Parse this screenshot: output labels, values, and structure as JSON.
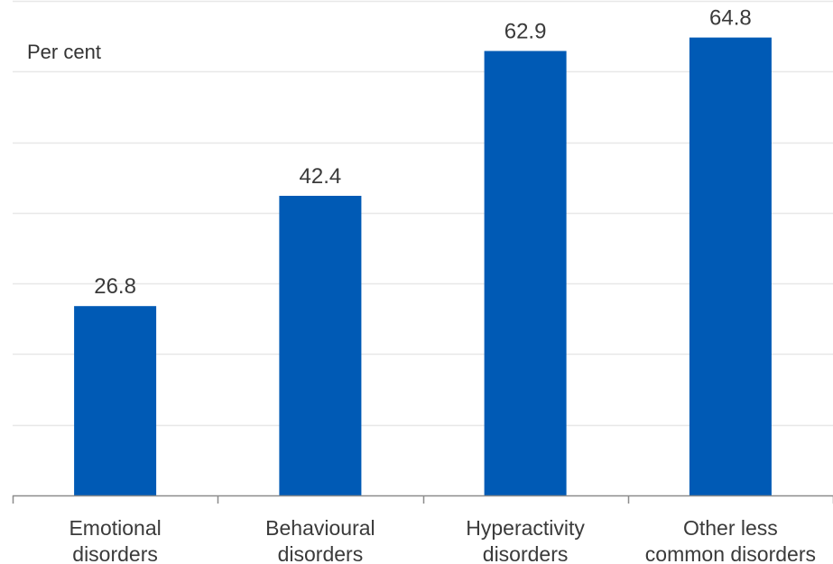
{
  "chart_data": {
    "type": "bar",
    "title": "",
    "xlabel": "",
    "ylabel": "Per cent",
    "categories": [
      [
        "Emotional",
        "disorders"
      ],
      [
        "Behavioural",
        "disorders"
      ],
      [
        "Hyperactivity",
        "disorders"
      ],
      [
        "Other less",
        "common disorders"
      ]
    ],
    "values": [
      26.8,
      42.4,
      62.9,
      64.8
    ],
    "value_labels": [
      "26.8",
      "42.4",
      "62.9",
      "64.8"
    ],
    "ylim": [
      0,
      70
    ],
    "grid": true,
    "legend": "none",
    "bar_color": "#005ab5",
    "grid_color": "#e8e8e8",
    "axis_color": "#8c8c8c"
  }
}
